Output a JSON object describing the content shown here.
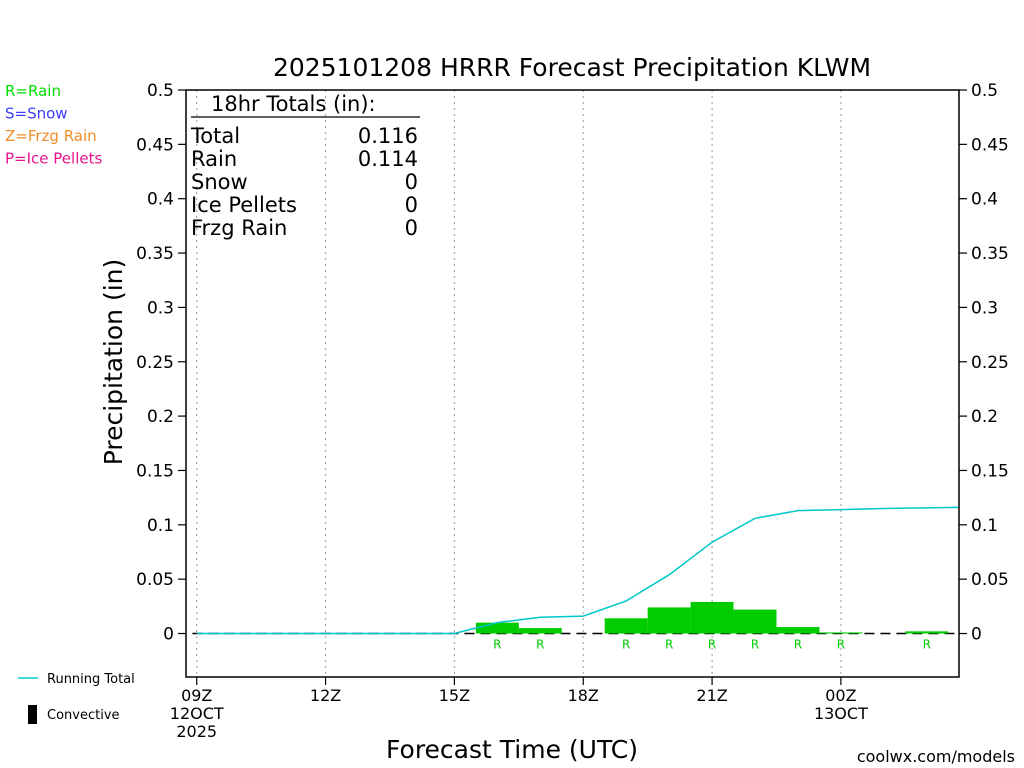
{
  "chart_data": {
    "type": "bar",
    "title": "2025101208 HRRR Forecast Precipitation KLWM",
    "xlabel": "Forecast Time (UTC)",
    "ylabel": "Precipitation (in)",
    "ylim": [
      -0.04,
      0.5
    ],
    "y_ticks": [
      "0.5",
      "0.45",
      "0.4",
      "0.35",
      "0.3",
      "0.25",
      "0.2",
      "0.15",
      "0.1",
      "0.05",
      "0"
    ],
    "y_tick_values": [
      0.5,
      0.45,
      0.4,
      0.35,
      0.3,
      0.25,
      0.2,
      0.15,
      0.1,
      0.05,
      0
    ],
    "xlim": [
      8.75,
      26.75
    ],
    "x_ticks": [
      {
        "hour": 9,
        "labels": [
          "09Z",
          "12OCT",
          "2025"
        ]
      },
      {
        "hour": 12,
        "labels": [
          "12Z"
        ]
      },
      {
        "hour": 15,
        "labels": [
          "15Z"
        ]
      },
      {
        "hour": 18,
        "labels": [
          "18Z"
        ]
      },
      {
        "hour": 21,
        "labels": [
          "21Z"
        ]
      },
      {
        "hour": 24,
        "labels": [
          "00Z",
          "13OCT"
        ]
      }
    ],
    "grid": "vertical-dotted",
    "hourly_precip": {
      "name": "Rain",
      "color": "#00cc00",
      "hours": [
        16,
        17,
        19,
        20,
        21,
        22,
        23,
        24,
        26
      ],
      "values": [
        0.01,
        0.005,
        0.014,
        0.024,
        0.029,
        0.022,
        0.006,
        0.001,
        0.002
      ]
    },
    "type_markers": {
      "label": "R",
      "hours": [
        16,
        17,
        19,
        20,
        21,
        22,
        23,
        24,
        26
      ],
      "color": "#00cc00"
    },
    "running_total": {
      "name": "Running Total",
      "color": "#00c8c8",
      "hours": [
        9,
        10,
        11,
        12,
        13,
        14,
        15,
        16,
        17,
        18,
        19,
        20,
        21,
        22,
        23,
        24,
        25,
        26.75
      ],
      "values": [
        0,
        0,
        0,
        0,
        0,
        0,
        0,
        0.01,
        0.015,
        0.016,
        0.03,
        0.054,
        0.084,
        0.106,
        0.113,
        0.114,
        0.115,
        0.116
      ]
    },
    "totals_box": {
      "header": "18hr Totals (in):",
      "rows": [
        {
          "label": "Total",
          "value": "0.116"
        },
        {
          "label": "Rain",
          "value": "0.114"
        },
        {
          "label": "Snow",
          "value": "0"
        },
        {
          "label": "Ice Pellets",
          "value": "0"
        },
        {
          "label": "Frzg Rain",
          "value": "0"
        }
      ]
    },
    "type_legend": [
      {
        "text": "R=Rain",
        "color": "#00dd00"
      },
      {
        "text": "S=Snow",
        "color": "#3c3cff"
      },
      {
        "text": "Z=Frzg Rain",
        "color": "#f08c28"
      },
      {
        "text": "P=Ice Pellets",
        "color": "#e6148c"
      }
    ],
    "bottom_legend": [
      {
        "text": "Running Total",
        "symbol": "line",
        "color": "#00c8c8"
      },
      {
        "text": "Convective",
        "symbol": "bar",
        "color": "#000000"
      }
    ],
    "credit": {
      "text": "coolwx.com/models",
      "color": "#e60000"
    }
  }
}
